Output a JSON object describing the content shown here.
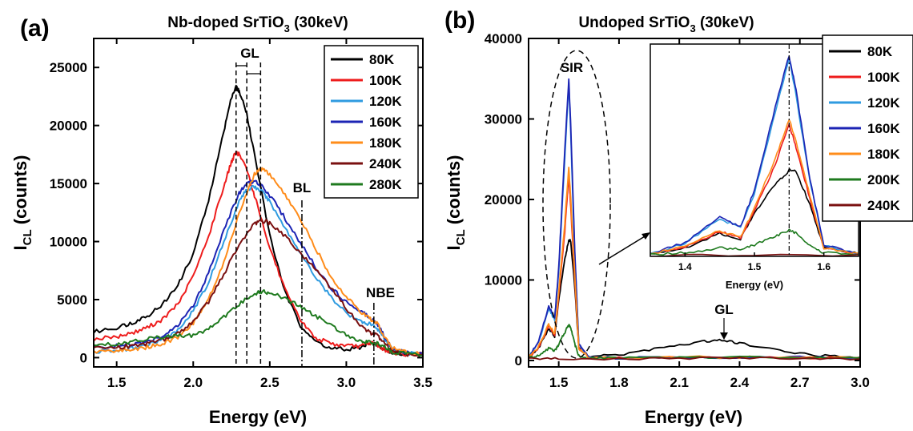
{
  "chart_data": [
    {
      "panel": "(a)",
      "type": "line",
      "title_main": "Nb-doped SrTiO",
      "title_sub": "3",
      "title_tail": " (30keV)",
      "xlabel": "Energy (eV)",
      "ylabel_main": "I",
      "ylabel_sub": "CL",
      "ylabel_tail": " (counts)",
      "xlim": [
        1.35,
        3.5
      ],
      "ylim": [
        -800,
        27500
      ],
      "xticks": [
        "1.5",
        "2.0",
        "2.5",
        "3.0",
        "3.5"
      ],
      "xtick_values": [
        1.5,
        2.0,
        2.5,
        3.0,
        3.5
      ],
      "yticks": [
        "0",
        "5000",
        "10000",
        "15000",
        "20000",
        "25000"
      ],
      "ytick_values": [
        0,
        5000,
        10000,
        15000,
        20000,
        25000
      ],
      "legend": {
        "placement": "top-right",
        "entries": [
          {
            "name": "80K",
            "color": "#000000"
          },
          {
            "name": "100K",
            "color": "#ee1c1c"
          },
          {
            "name": "120K",
            "color": "#2f9be0"
          },
          {
            "name": "160K",
            "color": "#1c24b4"
          },
          {
            "name": "180K",
            "color": "#ff8c1a"
          },
          {
            "name": "240K",
            "color": "#7a1010"
          },
          {
            "name": "280K",
            "color": "#1e7a1e"
          }
        ]
      },
      "series": [
        {
          "name": "80K",
          "color": "#000000",
          "x": [
            1.35,
            1.5,
            1.6,
            1.7,
            1.8,
            1.9,
            2.0,
            2.1,
            2.2,
            2.25,
            2.28,
            2.3,
            2.35,
            2.4,
            2.5,
            2.6,
            2.7,
            2.8,
            2.9,
            3.0,
            3.1,
            3.15,
            3.2,
            3.25,
            3.3,
            3.4,
            3.5
          ],
          "y": [
            2200,
            2600,
            3000,
            3600,
            4600,
            6200,
            9000,
            13500,
            19500,
            22500,
            23300,
            23000,
            21000,
            17500,
            10500,
            5600,
            2800,
            1400,
            800,
            700,
            900,
            1200,
            1100,
            700,
            400,
            300,
            300
          ]
        },
        {
          "name": "100K",
          "color": "#ee1c1c",
          "x": [
            1.35,
            1.5,
            1.6,
            1.7,
            1.8,
            1.9,
            2.0,
            2.1,
            2.2,
            2.25,
            2.28,
            2.3,
            2.35,
            2.4,
            2.5,
            2.6,
            2.7,
            2.8,
            2.9,
            3.0,
            3.1,
            3.15,
            3.2,
            3.25,
            3.3,
            3.4,
            3.5
          ],
          "y": [
            1600,
            1800,
            2100,
            2600,
            3300,
            4600,
            7000,
            10400,
            14800,
            16900,
            17700,
            17500,
            16200,
            14000,
            9500,
            5800,
            3200,
            1700,
            1200,
            1000,
            1000,
            1300,
            1100,
            700,
            400,
            300,
            300
          ]
        },
        {
          "name": "120K",
          "color": "#2f9be0",
          "x": [
            1.35,
            1.5,
            1.6,
            1.7,
            1.8,
            1.9,
            2.0,
            2.1,
            2.2,
            2.3,
            2.35,
            2.4,
            2.45,
            2.5,
            2.6,
            2.7,
            2.8,
            2.9,
            3.0,
            3.1,
            3.15,
            3.2,
            3.25,
            3.3,
            3.4,
            3.5
          ],
          "y": [
            500,
            600,
            800,
            1100,
            1600,
            2400,
            4000,
            6500,
            10000,
            13500,
            14500,
            14700,
            14300,
            13400,
            11200,
            9000,
            6900,
            5200,
            3900,
            3000,
            2900,
            2600,
            1600,
            800,
            400,
            300
          ]
        },
        {
          "name": "160K",
          "color": "#1c24b4",
          "x": [
            1.35,
            1.5,
            1.6,
            1.7,
            1.8,
            1.9,
            2.0,
            2.1,
            2.2,
            2.3,
            2.35,
            2.4,
            2.45,
            2.5,
            2.6,
            2.7,
            2.8,
            2.9,
            3.0,
            3.1,
            3.15,
            3.2,
            3.25,
            3.3,
            3.4,
            3.5
          ],
          "y": [
            900,
            1000,
            1100,
            1400,
            1900,
            2800,
            4500,
            7300,
            11000,
            14200,
            15000,
            15200,
            14800,
            14000,
            12000,
            9900,
            7800,
            6000,
            4800,
            4000,
            3500,
            3000,
            1800,
            800,
            400,
            300
          ]
        },
        {
          "name": "180K",
          "color": "#ff8c1a",
          "x": [
            1.35,
            1.5,
            1.6,
            1.7,
            1.8,
            1.9,
            2.0,
            2.1,
            2.2,
            2.3,
            2.4,
            2.45,
            2.5,
            2.6,
            2.7,
            2.8,
            2.9,
            3.0,
            3.1,
            3.15,
            3.2,
            3.25,
            3.3,
            3.4,
            3.5
          ],
          "y": [
            500,
            600,
            700,
            900,
            1200,
            1800,
            3000,
            5000,
            8200,
            12400,
            15800,
            16300,
            15800,
            14000,
            11900,
            9400,
            7000,
            5200,
            3900,
            3400,
            3000,
            1800,
            800,
            400,
            300
          ]
        },
        {
          "name": "240K",
          "color": "#7a1010",
          "x": [
            1.35,
            1.5,
            1.6,
            1.7,
            1.8,
            1.9,
            2.0,
            2.1,
            2.2,
            2.3,
            2.4,
            2.45,
            2.5,
            2.6,
            2.7,
            2.8,
            2.9,
            3.0,
            3.1,
            3.15,
            3.2,
            3.25,
            3.3,
            3.4,
            3.5
          ],
          "y": [
            800,
            900,
            1000,
            1200,
            1500,
            2100,
            3100,
            4800,
            7200,
            9800,
            11500,
            11800,
            11600,
            10500,
            9000,
            7700,
            6000,
            4200,
            2700,
            2200,
            1900,
            1200,
            600,
            300,
            200
          ]
        },
        {
          "name": "280K",
          "color": "#1e7a1e",
          "x": [
            1.35,
            1.5,
            1.6,
            1.7,
            1.8,
            1.9,
            2.0,
            2.1,
            2.2,
            2.3,
            2.4,
            2.45,
            2.5,
            2.6,
            2.7,
            2.8,
            2.9,
            3.0,
            3.1,
            3.15,
            3.2,
            3.25,
            3.3,
            3.4,
            3.5
          ],
          "y": [
            1100,
            1200,
            1400,
            1600,
            1800,
            1900,
            1900,
            2500,
            3500,
            4600,
            5500,
            5700,
            5600,
            5100,
            4400,
            3600,
            2800,
            2000,
            1400,
            1300,
            1200,
            900,
            500,
            300,
            200
          ]
        }
      ],
      "annotations": {
        "gl": "GL",
        "bl": "BL",
        "nbe": "NBE",
        "gl_lines_x": [
          2.28,
          2.35,
          2.44
        ],
        "bl_line_x": 2.71,
        "nbe_line_x": 3.18
      }
    },
    {
      "panel": "(b)",
      "type": "line",
      "title_main": "Undoped SrTiO",
      "title_sub": "3",
      "title_tail": " (30keV)",
      "xlabel": "Energy (eV)",
      "ylabel_main": "I",
      "ylabel_sub": "CL",
      "ylabel_tail": " (counts)",
      "xlim": [
        1.35,
        3.0
      ],
      "ylim": [
        -800,
        40000
      ],
      "xticks": [
        "1.5",
        "1.8",
        "2.1",
        "2.4",
        "2.7",
        "3.0"
      ],
      "xtick_values": [
        1.5,
        1.8,
        2.1,
        2.4,
        2.7,
        3.0
      ],
      "yticks": [
        "0",
        "10000",
        "20000",
        "30000",
        "40000"
      ],
      "ytick_values": [
        0,
        10000,
        20000,
        30000,
        40000
      ],
      "legend": {
        "placement": "top-right (outside)",
        "entries": [
          {
            "name": "80K",
            "color": "#000000"
          },
          {
            "name": "100K",
            "color": "#ee1c1c"
          },
          {
            "name": "120K",
            "color": "#2f9be0"
          },
          {
            "name": "160K",
            "color": "#1c24b4"
          },
          {
            "name": "180K",
            "color": "#ff8c1a"
          },
          {
            "name": "200K",
            "color": "#1e7a1e"
          },
          {
            "name": "240K",
            "color": "#7a1010"
          }
        ]
      },
      "series": [
        {
          "name": "80K",
          "color": "#000000",
          "x": [
            1.35,
            1.4,
            1.45,
            1.48,
            1.5,
            1.53,
            1.55,
            1.56,
            1.58,
            1.6,
            1.65,
            1.8,
            2.0,
            2.2,
            2.3,
            2.4,
            2.6,
            2.8,
            3.0
          ],
          "y": [
            400,
            1500,
            4000,
            3000,
            7500,
            12500,
            15000,
            14800,
            9000,
            1500,
            500,
            700,
            1500,
            2300,
            2500,
            2200,
            1200,
            600,
            400
          ]
        },
        {
          "name": "100K",
          "color": "#ee1c1c",
          "x": [
            1.35,
            1.4,
            1.45,
            1.48,
            1.5,
            1.53,
            1.55,
            1.56,
            1.58,
            1.6,
            1.65,
            1.8,
            2.2,
            2.6,
            3.0
          ],
          "y": [
            400,
            1600,
            4300,
            3200,
            8000,
            16000,
            23000,
            19000,
            10000,
            1500,
            400,
            300,
            400,
            400,
            300
          ]
        },
        {
          "name": "120K",
          "color": "#2f9be0",
          "x": [
            1.35,
            1.4,
            1.45,
            1.48,
            1.5,
            1.53,
            1.55,
            1.56,
            1.58,
            1.6,
            1.65,
            1.8,
            2.2,
            2.6,
            3.0
          ],
          "y": [
            400,
            2200,
            6500,
            5000,
            11000,
            25000,
            34500,
            28000,
            13000,
            2000,
            400,
            300,
            400,
            400,
            300
          ]
        },
        {
          "name": "160K",
          "color": "#1c24b4",
          "x": [
            1.35,
            1.4,
            1.45,
            1.48,
            1.5,
            1.53,
            1.55,
            1.56,
            1.58,
            1.6,
            1.65,
            1.8,
            2.2,
            2.6,
            3.0
          ],
          "y": [
            400,
            2400,
            6800,
            5200,
            11500,
            26000,
            35000,
            29000,
            13500,
            2000,
            400,
            300,
            400,
            400,
            300
          ]
        },
        {
          "name": "180K",
          "color": "#ff8c1a",
          "x": [
            1.35,
            1.4,
            1.45,
            1.48,
            1.5,
            1.53,
            1.55,
            1.56,
            1.58,
            1.6,
            1.65,
            1.8,
            2.2,
            2.6,
            3.0
          ],
          "y": [
            400,
            1700,
            4500,
            3300,
            8500,
            17000,
            24000,
            20000,
            10500,
            1500,
            400,
            300,
            400,
            400,
            300
          ]
        },
        {
          "name": "200K",
          "color": "#1e7a1e",
          "x": [
            1.35,
            1.4,
            1.45,
            1.48,
            1.5,
            1.53,
            1.55,
            1.56,
            1.58,
            1.6,
            1.65,
            1.8,
            2.2,
            2.6,
            3.0
          ],
          "y": [
            300,
            600,
            1500,
            1200,
            2000,
            3500,
            4500,
            4000,
            2000,
            600,
            300,
            300,
            400,
            400,
            300
          ]
        },
        {
          "name": "240K",
          "color": "#7a1010",
          "x": [
            1.35,
            1.5,
            1.8,
            2.2,
            2.6,
            3.0
          ],
          "y": [
            200,
            200,
            200,
            300,
            300,
            200
          ]
        }
      ],
      "annotations": {
        "sir": "SIR",
        "gl": "GL"
      },
      "inset": {
        "xlabel": "Energy (eV)",
        "xlim": [
          1.35,
          1.65
        ],
        "ylim": [
          0,
          37000
        ],
        "xticks": [
          "1.4",
          "1.5",
          "1.6"
        ],
        "xtick_values": [
          1.4,
          1.5,
          1.6
        ],
        "dashed_line_x": 1.55
      }
    }
  ]
}
